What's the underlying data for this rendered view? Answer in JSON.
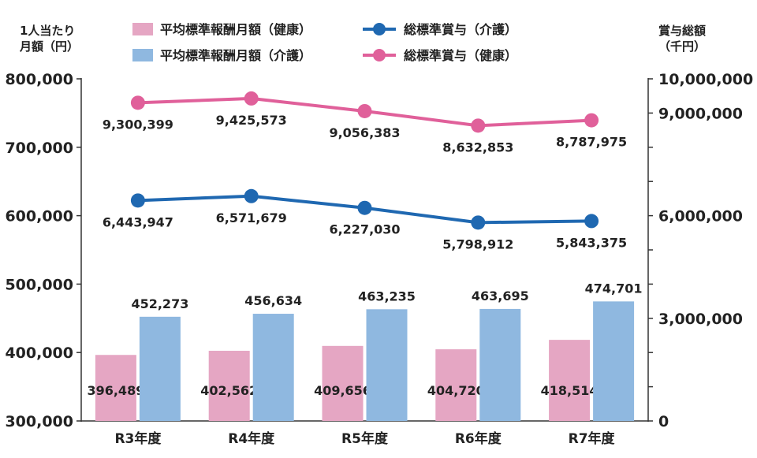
{
  "chart_data": {
    "type": "bar",
    "categories": [
      "R3年度",
      "R4年度",
      "R5年度",
      "R6年度",
      "R7年度"
    ],
    "left_axis": {
      "label_line1": "1人当たり",
      "label_line2": "月額（円）",
      "range": [
        300000,
        800000
      ],
      "ticks": [
        "800,000",
        "700,000",
        "600,000",
        "500,000",
        "400,000",
        "300,000"
      ]
    },
    "right_axis": {
      "label_line1": "賞与総額",
      "label_line2": "（千円）",
      "range": [
        0,
        10000000
      ],
      "ticks": [
        "10,000,000",
        "9,000,000",
        "6,000,000",
        "3,000,000",
        "0"
      ]
    },
    "bar_series": [
      {
        "name": "平均標準報酬月額（健康）",
        "color": "#e5a6c3",
        "values": [
          396489,
          402562,
          409656,
          404720,
          418514
        ],
        "labels": [
          "396,489",
          "402,562",
          "409,656",
          "404,720",
          "418,514"
        ]
      },
      {
        "name": "平均標準報酬月額（介護）",
        "color": "#8fb8e0",
        "values": [
          452273,
          456634,
          463235,
          463695,
          474701
        ],
        "labels": [
          "452,273",
          "456,634",
          "463,235",
          "463,695",
          "474,701"
        ]
      }
    ],
    "line_series": [
      {
        "name": "総標準賞与（介護）",
        "color": "#1f68b1",
        "values": [
          6443947,
          6571679,
          6227030,
          5798912,
          5843375
        ],
        "labels": [
          "6,443,947",
          "6,571,679",
          "6,227,030",
          "5,798,912",
          "5,843,375"
        ]
      },
      {
        "name": "総標準賞与（健康）",
        "color": "#e0609a",
        "values": [
          9300399,
          9425573,
          9056383,
          8632853,
          8787975
        ],
        "labels": [
          "9,300,399",
          "9,425,573",
          "9,056,383",
          "8,632,853",
          "8,787,975"
        ]
      }
    ],
    "legend_position": "top"
  }
}
